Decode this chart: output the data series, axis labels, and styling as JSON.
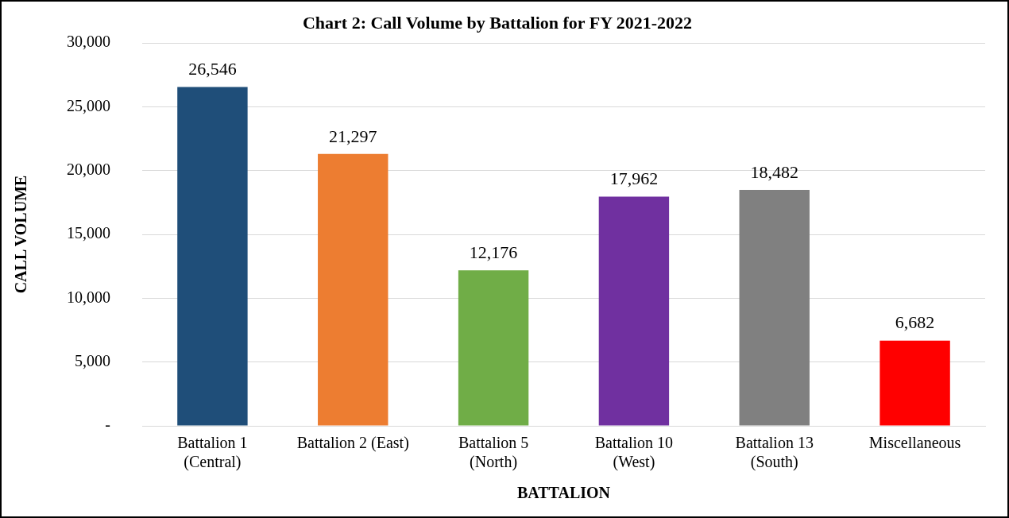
{
  "chart_data": {
    "type": "bar",
    "title": "Chart 2: Call Volume by Battalion for FY 2021-2022",
    "xlabel": "BATTALION",
    "ylabel": "CALL VOLUME",
    "categories": [
      "Battalion 1 (Central)",
      "Battalion 2 (East)",
      "Battalion 5 (North)",
      "Battalion 10 (West)",
      "Battalion 13 (South)",
      "Miscellaneous"
    ],
    "values": [
      26546,
      21297,
      12176,
      17962,
      18482,
      6682
    ],
    "colors": [
      "#1f4e79",
      "#ed7d31",
      "#70ad47",
      "#7030a0",
      "#808080",
      "#ff0000"
    ],
    "ylim": [
      0,
      30000
    ],
    "yticks": [
      {
        "value": 0,
        "label": "-"
      },
      {
        "value": 5000,
        "label": "5,000"
      },
      {
        "value": 10000,
        "label": "10,000"
      },
      {
        "value": 15000,
        "label": "15,000"
      },
      {
        "value": 20000,
        "label": "20,000"
      },
      {
        "value": 25000,
        "label": "25,000"
      },
      {
        "value": 30000,
        "label": "30,000"
      }
    ],
    "value_labels": [
      "26,546",
      "21,297",
      "12,176",
      "17,962",
      "18,482",
      "6,682"
    ],
    "grid": "y"
  }
}
